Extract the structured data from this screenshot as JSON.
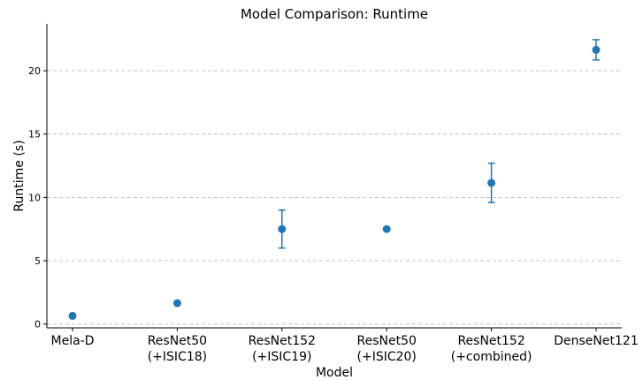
{
  "chart_data": {
    "type": "scatter",
    "title": "Model Comparison: Runtime",
    "xlabel": "Model",
    "ylabel": "Runtime (s)",
    "categories": [
      [
        "Mela-D"
      ],
      [
        "ResNet50",
        "(+ISIC18)"
      ],
      [
        "ResNet152",
        "(+ISIC19)"
      ],
      [
        "ResNet50",
        "(+ISIC20)"
      ],
      [
        "ResNet152",
        "(+combined)"
      ],
      [
        "DenseNet121"
      ]
    ],
    "values": [
      0.65,
      1.65,
      7.5,
      7.5,
      11.15,
      21.65
    ],
    "errors": [
      0.0,
      0.0,
      1.5,
      0.1,
      1.55,
      0.8
    ],
    "ylim": [
      -0.3,
      23.7
    ],
    "yticks": [
      0,
      5,
      10,
      15,
      20
    ],
    "grid": "y-dashed",
    "color": "#1f77b4"
  }
}
